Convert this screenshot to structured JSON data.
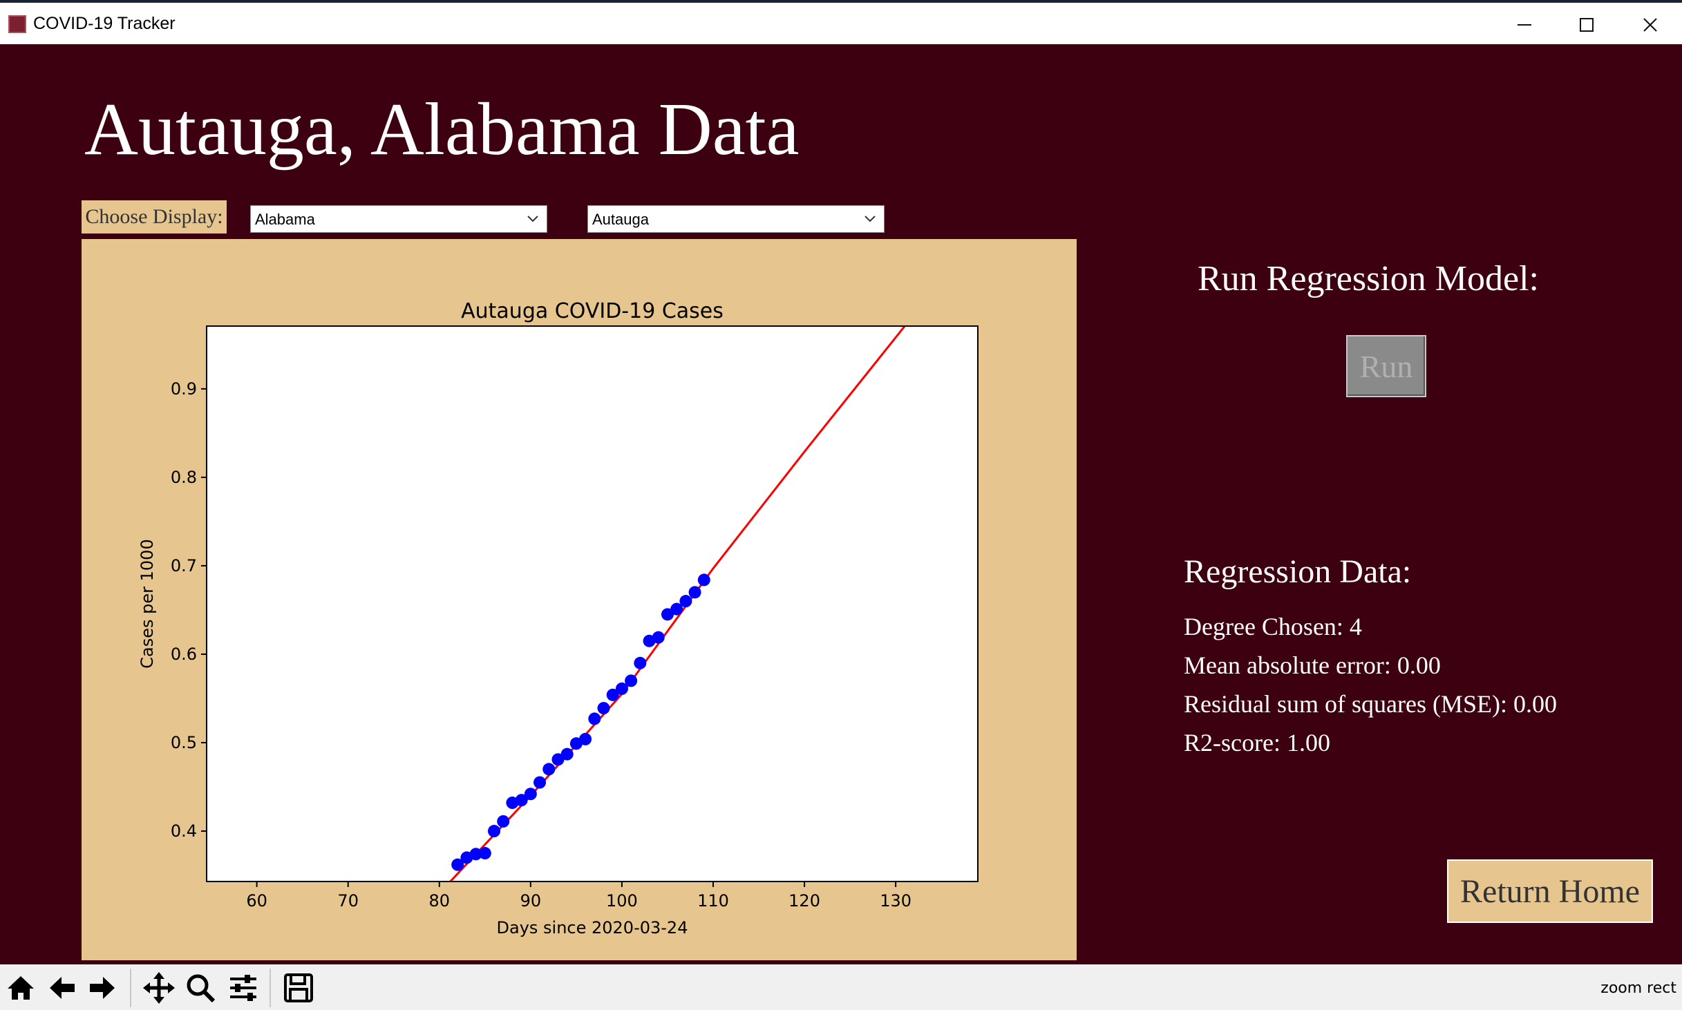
{
  "window": {
    "title": "COVID-19 Tracker"
  },
  "header": {
    "title": "Autauga, Alabama Data"
  },
  "controls": {
    "choose_label": "Choose Display:",
    "state_select": "Alabama",
    "county_select": "Autauga"
  },
  "sidebar": {
    "run_heading": "Run Regression Model:",
    "run_label": "Run",
    "regression_heading": "Regression Data:",
    "degree": "Degree Chosen: 4",
    "mae": "Mean absolute error: 0.00",
    "mse": "Residual sum of squares (MSE): 0.00",
    "r2": "R2-score: 1.00",
    "return_label": "Return Home"
  },
  "toolbar": {
    "items": [
      "home-icon",
      "back-arrow-icon",
      "forward-arrow-icon",
      "pan-icon",
      "zoom-icon",
      "configure-icon",
      "save-icon"
    ],
    "status": "zoom rect"
  },
  "colors": {
    "background": "#3d0010",
    "panel": "#e6c68e",
    "points": "#0000ff",
    "fit_line": "#ff0000"
  },
  "chart_data": {
    "type": "scatter",
    "title": "Autauga COVID-19 Cases",
    "xlabel": "Days since 2020-03-24",
    "ylabel": "Cases per 1000",
    "xlim": [
      54.5,
      139
    ],
    "ylim": [
      0.343,
      0.971
    ],
    "xticks": [
      60,
      70,
      80,
      90,
      100,
      110,
      120,
      130
    ],
    "yticks": [
      0.4,
      0.5,
      0.6,
      0.7,
      0.8,
      0.9
    ],
    "grid": false,
    "series": [
      {
        "kind": "points",
        "x": [
          82,
          83,
          84,
          85,
          86,
          87,
          88,
          89,
          90,
          91,
          92,
          93,
          94,
          95,
          96,
          97,
          98,
          99,
          100,
          101,
          102,
          103,
          104,
          105,
          106,
          107,
          108,
          109
        ],
        "y": [
          0.362,
          0.37,
          0.374,
          0.375,
          0.4,
          0.411,
          0.432,
          0.435,
          0.442,
          0.455,
          0.47,
          0.481,
          0.487,
          0.499,
          0.504,
          0.527,
          0.539,
          0.554,
          0.561,
          0.57,
          0.59,
          0.615,
          0.619,
          0.645,
          0.651,
          0.66,
          0.67,
          0.684
        ]
      },
      {
        "kind": "fit-line",
        "x": [
          81.2,
          90,
          100,
          110,
          120,
          131
        ],
        "y": [
          0.343,
          0.44,
          0.555,
          0.697,
          0.829,
          0.971
        ]
      }
    ]
  }
}
